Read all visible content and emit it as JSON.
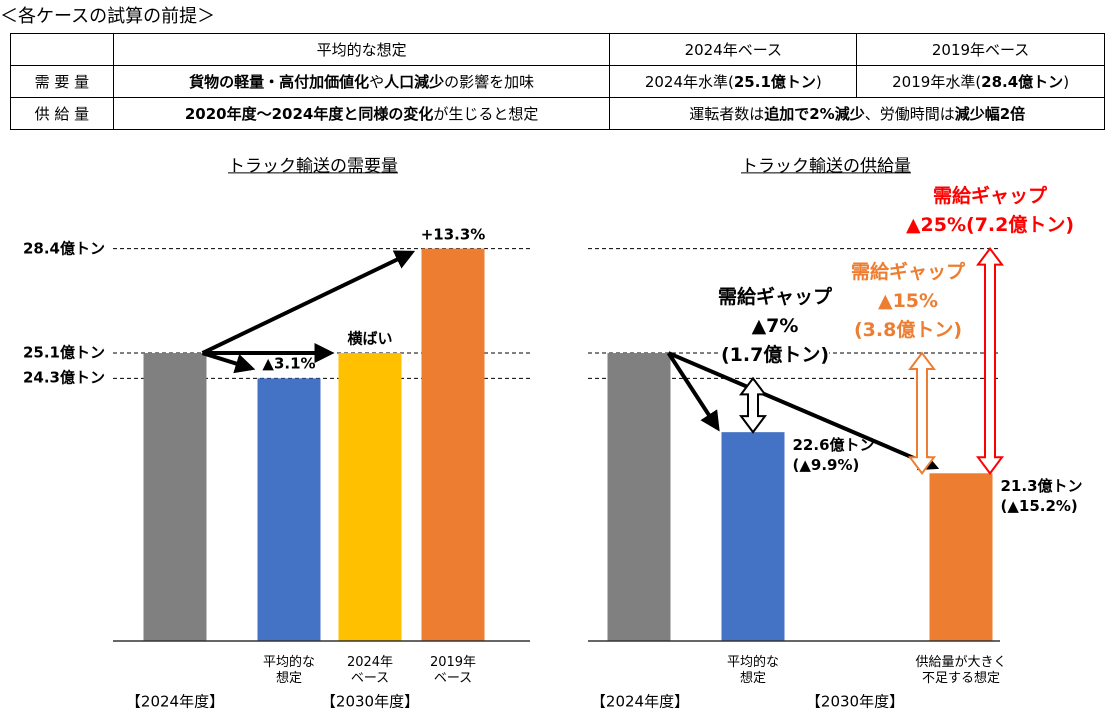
{
  "header": {
    "title": "＜各ケースの試算の前提＞"
  },
  "table": {
    "header": [
      null,
      "平均的な想定",
      "2024年ベース",
      "2019年ベース"
    ],
    "rows": [
      {
        "label": "需 要 量",
        "colspans": [
          1,
          1,
          1
        ],
        "cells": [
          [
            {
              "text": "貨物の軽量・高付加価値化",
              "bold": true
            },
            {
              "text": "や"
            },
            {
              "text": "人口減少",
              "bold": true
            },
            {
              "text": "の影響を加味"
            }
          ],
          [
            {
              "text": "2024年水準("
            },
            {
              "text": "25.1億トン",
              "bold": true
            },
            {
              "text": ")"
            }
          ],
          [
            {
              "text": "2019年水準("
            },
            {
              "text": "28.4億トン",
              "bold": true
            },
            {
              "text": ")"
            }
          ]
        ]
      },
      {
        "label": "供 給 量",
        "colspans": [
          1,
          2
        ],
        "cells": [
          [
            {
              "text": "2020年度～2024年度と同様の変化",
              "bold": true
            },
            {
              "text": "が生じると想定"
            }
          ],
          [
            {
              "text": "運転者数は"
            },
            {
              "text": "追加で2%減少",
              "bold": true
            },
            {
              "text": "、労働時間は"
            },
            {
              "text": "減少幅2倍",
              "bold": true
            }
          ]
        ]
      }
    ]
  },
  "chart_data": [
    {
      "type": "bar",
      "title": "トラック輸送の需要量",
      "categories": [
        null,
        "平均的な\n想定",
        "2024年\nベース",
        "2019年\nベース"
      ],
      "values": [
        25.1,
        24.3,
        25.1,
        28.4
      ],
      "colors": [
        "#808080",
        "#4472c4",
        "#ffc000",
        "#ed7d31"
      ],
      "ylim": [
        16,
        30
      ],
      "yticks": [
        {
          "value": 28.4,
          "label": "28.4億トン"
        },
        {
          "value": 25.1,
          "label": "25.1億トン"
        },
        {
          "value": 24.3,
          "label": "24.3億トン"
        }
      ],
      "annotations": [
        "▲3.1%",
        "横ばい",
        "+13.3%"
      ],
      "group_labels": [
        "【2024年度】",
        "【2030年度】"
      ]
    },
    {
      "type": "bar",
      "title": "トラック輸送の供給量",
      "categories": [
        null,
        "平均的な\n想定",
        "供給量が大きく\n不足する想定"
      ],
      "values": [
        25.1,
        22.6,
        21.3
      ],
      "value_labels": [
        null,
        "22.6億トン",
        "21.3億トン"
      ],
      "colors": [
        "#808080",
        "#4472c4",
        "#ed7d31"
      ],
      "ylim": [
        16,
        30
      ],
      "reference_lines": [
        28.4,
        25.1,
        24.3
      ],
      "annotations": [
        "(▲9.9%)",
        "(▲15.2%)"
      ],
      "gaps": [
        {
          "lines": [
            "需給ギャップ",
            "▲7%",
            "(1.7億トン)"
          ],
          "color": "#000000",
          "range": [
            24.3,
            22.6
          ]
        },
        {
          "lines": [
            "需給ギャップ",
            "▲15%",
            "(3.8億トン)"
          ],
          "color": "#ed7d31",
          "range": [
            25.1,
            21.3
          ]
        },
        {
          "lines": [
            "需給ギャップ",
            "▲25%(7.2億トン)"
          ],
          "color": "#ff0000",
          "range": [
            28.4,
            21.3
          ]
        }
      ],
      "group_labels": [
        "【2024年度】",
        "【2030年度】"
      ]
    }
  ]
}
